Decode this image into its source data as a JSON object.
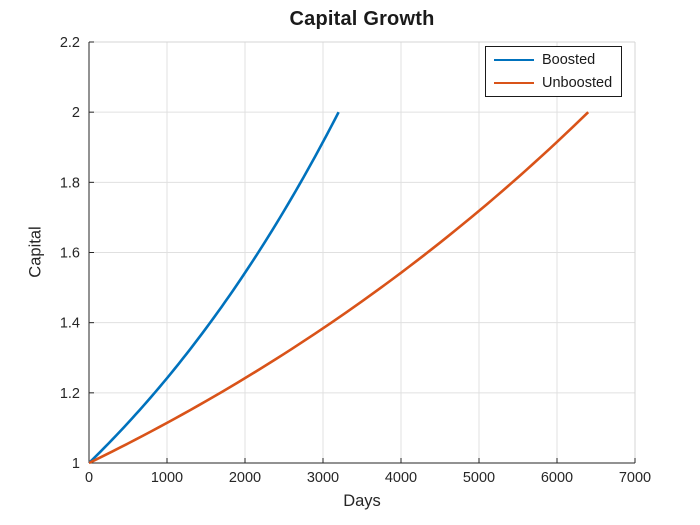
{
  "title": "Capital Growth",
  "legend": {
    "entries": [
      {
        "label": "Boosted",
        "color": "#0072BD"
      },
      {
        "label": "Unboosted",
        "color": "#D95319"
      }
    ],
    "position": "northeast",
    "border_color": "#1a1a1a"
  },
  "colors": {
    "background": "#ffffff",
    "axis": "#262626",
    "box_edge_light": "#d4d4d4",
    "grid": "#e0e0e0",
    "tick_label": "#262626",
    "series_blue": "#0072BD",
    "series_orange": "#D95319"
  },
  "chart_data": {
    "type": "line",
    "title": "Capital Growth",
    "xlabel": "Days",
    "ylabel": "Capital",
    "xlim": [
      0,
      7000
    ],
    "ylim": [
      1,
      2.2
    ],
    "x_ticks": [
      0,
      1000,
      2000,
      3000,
      4000,
      5000,
      6000,
      7000
    ],
    "x_tick_labels": [
      "0",
      "1000",
      "2000",
      "3000",
      "4000",
      "5000",
      "6000",
      "7000"
    ],
    "y_ticks": [
      1,
      1.2,
      1.4,
      1.6,
      1.8,
      2,
      2.2
    ],
    "y_tick_labels": [
      "1",
      "1.2",
      "1.4",
      "1.6",
      "1.8",
      "2",
      "2.2"
    ],
    "grid": true,
    "legend_position": "northeast",
    "interpolation": "exponential",
    "series": [
      {
        "name": "Boosted",
        "color": "#0072BD",
        "x": [
          0,
          400,
          800,
          1200,
          1600,
          2000,
          2400,
          2800,
          3200
        ],
        "y": [
          1.0,
          1.0905,
          1.1892,
          1.2968,
          1.4142,
          1.5422,
          1.6818,
          1.834,
          2.0
        ]
      },
      {
        "name": "Unboosted",
        "color": "#D95319",
        "x": [
          0,
          800,
          1600,
          2400,
          3200,
          4000,
          4800,
          5600,
          6400
        ],
        "y": [
          1.0,
          1.0905,
          1.1892,
          1.2968,
          1.4142,
          1.5422,
          1.6818,
          1.834,
          2.0
        ]
      }
    ]
  }
}
